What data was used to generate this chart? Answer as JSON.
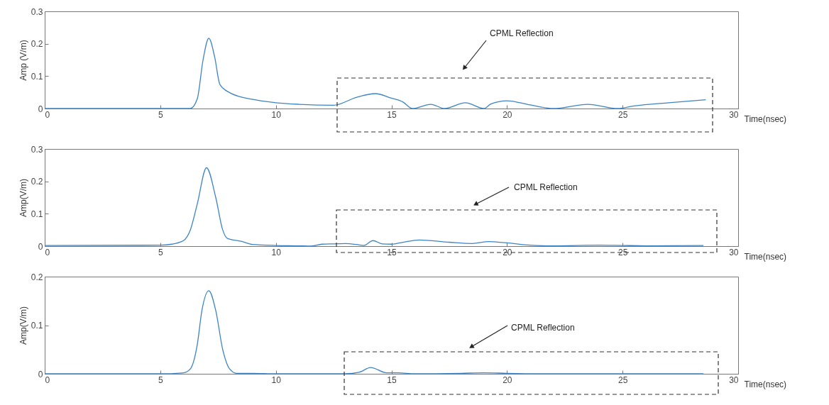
{
  "chart_data": [
    {
      "type": "line",
      "ylabel": "Amp (V/m)",
      "xlabel": "Time(nsec)",
      "xlim": [
        0,
        30
      ],
      "ylim": [
        0,
        0.3
      ],
      "xticks": [
        0,
        5,
        10,
        15,
        20,
        25,
        30
      ],
      "yticks": [
        0,
        0.1,
        0.2,
        0.3
      ],
      "series": [
        {
          "color": "#3d84c6",
          "x": [
            0,
            6.3,
            6.6,
            6.85,
            7.1,
            7.35,
            7.58,
            8.0,
            9,
            10,
            11,
            12.5,
            13.5,
            14.3,
            15,
            15.5,
            15.9,
            16.7,
            17.3,
            18.2,
            19.0,
            19.3,
            20.0,
            21,
            22,
            23.5,
            24.8,
            25.5,
            27,
            28.6
          ],
          "values": [
            0,
            0,
            0.03,
            0.15,
            0.217,
            0.16,
            0.074,
            0.049,
            0.028,
            0.018,
            0.013,
            0.01,
            0.035,
            0.046,
            0.032,
            0.02,
            0,
            0.013,
            0,
            0.018,
            0,
            0.014,
            0.024,
            0.011,
            0,
            0.013,
            0,
            0.008,
            0.018,
            0.027
          ]
        }
      ],
      "annotations": [
        "CPML Reflection"
      ]
    },
    {
      "type": "line",
      "ylabel": "Amp(V/m)",
      "xlabel": "Time(nsec)",
      "xlim": [
        0,
        30
      ],
      "ylim": [
        0,
        0.3
      ],
      "xticks": [
        0,
        5,
        10,
        15,
        20,
        25,
        30
      ],
      "yticks": [
        0,
        0.1,
        0.2,
        0.3
      ],
      "series": [
        {
          "color": "#3d84c6",
          "x": [
            0,
            5,
            5.5,
            6,
            6.3,
            6.6,
            7.0,
            7.4,
            7.7,
            7.9,
            8.5,
            9,
            10,
            11,
            11.5,
            12,
            12.5,
            13,
            13.5,
            13.8,
            14.2,
            14.6,
            15,
            15.5,
            16.2,
            17.5,
            18.5,
            19.2,
            20,
            21,
            22,
            24,
            25,
            26,
            28.5
          ],
          "values": [
            0.002,
            0.003,
            0.006,
            0.017,
            0.05,
            0.13,
            0.242,
            0.15,
            0.05,
            0.024,
            0.015,
            0.005,
            0.002,
            0.001,
            0,
            0.006,
            0.007,
            0.008,
            0.005,
            0.002,
            0.017,
            0.007,
            0.006,
            0.012,
            0.019,
            0.012,
            0.008,
            0.014,
            0.01,
            0.003,
            0.001,
            0.003,
            0.002,
            0.001,
            0.002
          ]
        }
      ],
      "annotations": [
        "CPML Reflection"
      ]
    },
    {
      "type": "line",
      "ylabel": "Amp(V/m)",
      "xlabel": "Time(nsec)",
      "xlim": [
        0,
        30
      ],
      "ylim": [
        0,
        0.2
      ],
      "xticks": [
        0,
        5,
        10,
        15,
        20,
        25,
        30
      ],
      "yticks": [
        0,
        0.1,
        0.2
      ],
      "series": [
        {
          "color": "#3d84c6",
          "x": [
            0,
            5,
            6,
            6.3,
            6.6,
            6.8,
            7.1,
            7.4,
            7.7,
            8.0,
            8.3,
            9,
            10,
            13,
            13.6,
            14.1,
            14.8,
            15.3,
            16,
            18,
            19,
            20,
            22,
            28.5
          ],
          "values": [
            0,
            0,
            0.002,
            0.01,
            0.06,
            0.13,
            0.171,
            0.13,
            0.05,
            0.01,
            0.001,
            0.001,
            0,
            0,
            0.003,
            0.013,
            0.002,
            0.002,
            0,
            0.001,
            0.002,
            0.001,
            0,
            0
          ]
        }
      ],
      "annotations": [
        "CPML Reflection"
      ]
    }
  ]
}
